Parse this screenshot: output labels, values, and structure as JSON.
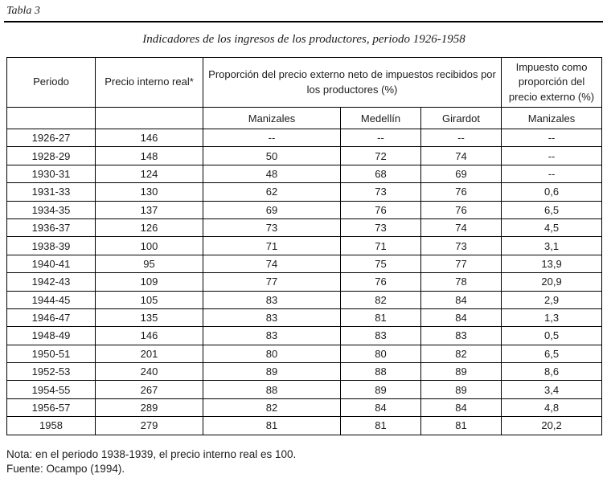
{
  "page": {
    "table_label": "Tabla 3",
    "title": "Indicadores de los ingresos de los productores, periodo 1926-1958"
  },
  "table": {
    "header": {
      "periodo": "Periodo",
      "precio_interno": "Precio interno real*",
      "proporcion_group": "Proporción del precio externo neto de impuestos recibidos por los productores (%)",
      "impuesto_group": "Impuesto como proporción del precio externo (%)",
      "sub_manizales": "Manizales",
      "sub_medellin": "Medellín",
      "sub_girardot": "Girardot",
      "sub_impuesto_manizales": "Manizales"
    },
    "rows": [
      [
        "1926-27",
        "146",
        "--",
        "--",
        "--",
        "--"
      ],
      [
        "1928-29",
        "148",
        "50",
        "72",
        "74",
        "--"
      ],
      [
        "1930-31",
        "124",
        "48",
        "68",
        "69",
        "--"
      ],
      [
        "1931-33",
        "130",
        "62",
        "73",
        "76",
        "0,6"
      ],
      [
        "1934-35",
        "137",
        "69",
        "76",
        "76",
        "6,5"
      ],
      [
        "1936-37",
        "126",
        "73",
        "73",
        "74",
        "4,5"
      ],
      [
        "1938-39",
        "100",
        "71",
        "71",
        "73",
        "3,1"
      ],
      [
        "1940-41",
        "95",
        "74",
        "75",
        "77",
        "13,9"
      ],
      [
        "1942-43",
        "109",
        "77",
        "76",
        "78",
        "20,9"
      ],
      [
        "1944-45",
        "105",
        "83",
        "82",
        "84",
        "2,9"
      ],
      [
        "1946-47",
        "135",
        "83",
        "81",
        "84",
        "1,3"
      ],
      [
        "1948-49",
        "146",
        "83",
        "83",
        "83",
        "0,5"
      ],
      [
        "1950-51",
        "201",
        "80",
        "80",
        "82",
        "6,5"
      ],
      [
        "1952-53",
        "240",
        "89",
        "88",
        "89",
        "8,6"
      ],
      [
        "1954-55",
        "267",
        "88",
        "89",
        "89",
        "3,4"
      ],
      [
        "1956-57",
        "289",
        "82",
        "84",
        "84",
        "4,8"
      ],
      [
        "1958",
        "279",
        "81",
        "81",
        "81",
        "20,2"
      ]
    ]
  },
  "footer": {
    "nota": "Nota: en el periodo 1938-1939, el precio interno real es 100.",
    "fuente": "Fuente: Ocampo (1994)."
  }
}
